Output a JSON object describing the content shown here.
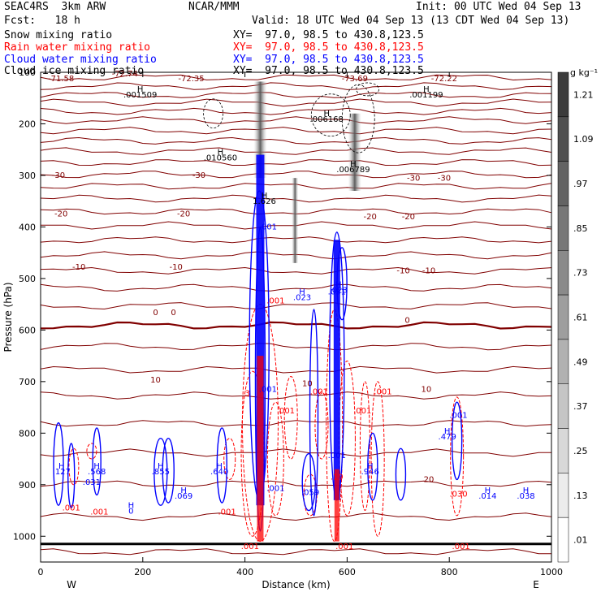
{
  "header": {
    "model": "SEAC4RS  3km ARW",
    "org": "NCAR/MMM",
    "init": "Init: 00 UTC Wed 04 Sep 13",
    "fcst": "Fcst:   18 h",
    "valid": "Valid: 18 UTC Wed 04 Sep 13 (13 CDT Wed 04 Sep 13)"
  },
  "fields": [
    {
      "name": "Snow mixing ratio",
      "xy": "XY=  97.0, 98.5 to 430.8,123.5",
      "color": "#000000"
    },
    {
      "name": "Rain water mixing ratio",
      "xy": "XY=  97.0, 98.5 to 430.8,123.5",
      "color": "#ff0000"
    },
    {
      "name": "Cloud water mixing ratio",
      "xy": "XY=  97.0, 98.5 to 430.8,123.5",
      "color": "#0000ff"
    },
    {
      "name": "Cloud ice mixing ratio",
      "xy": "XY=  97.0, 98.5 to 430.8,123.5",
      "color": "#000000"
    }
  ],
  "colors": {
    "temp": "#800000",
    "rain": "#ff0000",
    "cloud": "#0000ff",
    "snow": "#555555"
  },
  "chart_data": {
    "type": "contour_cross_section",
    "xlabel": "Distance (km)",
    "ylabel": "Pressure (hPa)",
    "xlim": [
      0,
      1000
    ],
    "ylim": [
      1050,
      100
    ],
    "x_ticks": [
      "0",
      "200",
      "400",
      "600",
      "800",
      "1000"
    ],
    "y_ticks": [
      "100",
      "200",
      "300",
      "400",
      "500",
      "600",
      "700",
      "800",
      "900",
      "1000"
    ],
    "x_ends": [
      "W",
      "E"
    ],
    "colorbar": {
      "unit": "g kg⁻¹",
      "levels": [
        "1.21",
        "1.09",
        ".97",
        ".85",
        ".73",
        ".61",
        ".49",
        ".37",
        ".25",
        ".13",
        ".01"
      ]
    },
    "temperature_labels": [
      {
        "text": "-71.58",
        "x": 40,
        "p": 117
      },
      {
        "text": "-72.74",
        "x": 165,
        "p": 108
      },
      {
        "text": "-72.35",
        "x": 295,
        "p": 117
      },
      {
        "text": "-73.69",
        "x": 615,
        "p": 117
      },
      {
        "text": "-72.22",
        "x": 790,
        "p": 117
      },
      {
        "text": "-30",
        "x": 35,
        "p": 305
      },
      {
        "text": "-30",
        "x": 310,
        "p": 305
      },
      {
        "text": "-30",
        "x": 730,
        "p": 310
      },
      {
        "text": "-30",
        "x": 790,
        "p": 310
      },
      {
        "text": "-20",
        "x": 40,
        "p": 380
      },
      {
        "text": "-20",
        "x": 280,
        "p": 380
      },
      {
        "text": "-20",
        "x": 645,
        "p": 385
      },
      {
        "text": "-20",
        "x": 720,
        "p": 385
      },
      {
        "text": "-10",
        "x": 75,
        "p": 483
      },
      {
        "text": "-10",
        "x": 265,
        "p": 483
      },
      {
        "text": "-10",
        "x": 710,
        "p": 490
      },
      {
        "text": "-10",
        "x": 760,
        "p": 490
      },
      {
        "text": "0",
        "x": 225,
        "p": 571
      },
      {
        "text": "0",
        "x": 260,
        "p": 571
      },
      {
        "text": "0",
        "x": 718,
        "p": 586
      },
      {
        "text": "10",
        "x": 225,
        "p": 702
      },
      {
        "text": "10",
        "x": 522,
        "p": 709
      },
      {
        "text": "10",
        "x": 755,
        "p": 720
      },
      {
        "text": "20",
        "x": 760,
        "p": 895
      }
    ],
    "extrema_labels": [
      {
        "mark": "H",
        "value": ".001509",
        "x": 195,
        "p": 149
      },
      {
        "mark": "H",
        "value": ".006168",
        "x": 560,
        "p": 196
      },
      {
        "mark": "H",
        "value": ".010560",
        "x": 352,
        "p": 271
      },
      {
        "mark": "H",
        "value": ".006789",
        "x": 612,
        "p": 294
      },
      {
        "mark": "H",
        "value": ".001199",
        "x": 755,
        "p": 149
      },
      {
        "mark": "H",
        "value": "1.626",
        "x": 438,
        "p": 355
      },
      {
        "mark": "H",
        "value": ".023",
        "x": 512,
        "p": 542
      },
      {
        "mark": "H",
        "value": ".023",
        "x": 583,
        "p": 528
      },
      {
        "mark": "H",
        "value": ".479",
        "x": 796,
        "p": 812
      },
      {
        "mark": "H",
        "value": ".127",
        "x": 41,
        "p": 880
      },
      {
        "mark": "H",
        "value": ".568",
        "x": 110,
        "p": 880
      },
      {
        "mark": "H",
        "value": ".855",
        "x": 235,
        "p": 880
      },
      {
        "mark": "H",
        "value": ".640",
        "x": 350,
        "p": 880
      },
      {
        "mark": "H",
        "value": ".946",
        "x": 645,
        "p": 880
      },
      {
        "mark": "H",
        "value": ".069",
        "x": 280,
        "p": 927
      },
      {
        "mark": "H",
        "value": ".014",
        "x": 875,
        "p": 927
      },
      {
        "mark": "H",
        "value": ".038",
        "x": 950,
        "p": 927
      },
      {
        "mark": "H",
        "value": "0",
        "x": 177,
        "p": 956
      }
    ],
    "rain_labels": [
      {
        "text": ".001",
        "x": 60,
        "p": 950
      },
      {
        "text": ".001",
        "x": 115,
        "p": 958
      },
      {
        "text": ".001",
        "x": 365,
        "p": 958
      },
      {
        "text": ".001",
        "x": 480,
        "p": 762
      },
      {
        "text": ".001",
        "x": 545,
        "p": 725
      },
      {
        "text": ".001",
        "x": 630,
        "p": 762
      },
      {
        "text": ".001",
        "x": 670,
        "p": 725
      },
      {
        "text": ".001",
        "x": 410,
        "p": 1025
      },
      {
        "text": ".001",
        "x": 595,
        "p": 1025
      },
      {
        "text": ".001",
        "x": 823,
        "p": 1025
      },
      {
        "text": "3",
        "x": 405,
        "p": 728
      },
      {
        "text": ".19",
        "x": 580,
        "p": 890
      },
      {
        "text": ".030",
        "x": 818,
        "p": 923
      },
      {
        "text": ".001",
        "x": 460,
        "p": 548
      }
    ],
    "cloud_labels": [
      {
        "text": ".001",
        "x": 445,
        "p": 405
      },
      {
        "text": ".001",
        "x": 445,
        "p": 720
      },
      {
        "text": ".001",
        "x": 580,
        "p": 848
      },
      {
        "text": ".001",
        "x": 818,
        "p": 770
      },
      {
        "text": ".001",
        "x": 460,
        "p": 912
      },
      {
        "text": ".031",
        "x": 100,
        "p": 900
      },
      {
        "text": ".059",
        "x": 528,
        "p": 920
      },
      {
        "text": ".031",
        "x": 580,
        "p": 531
      }
    ]
  }
}
